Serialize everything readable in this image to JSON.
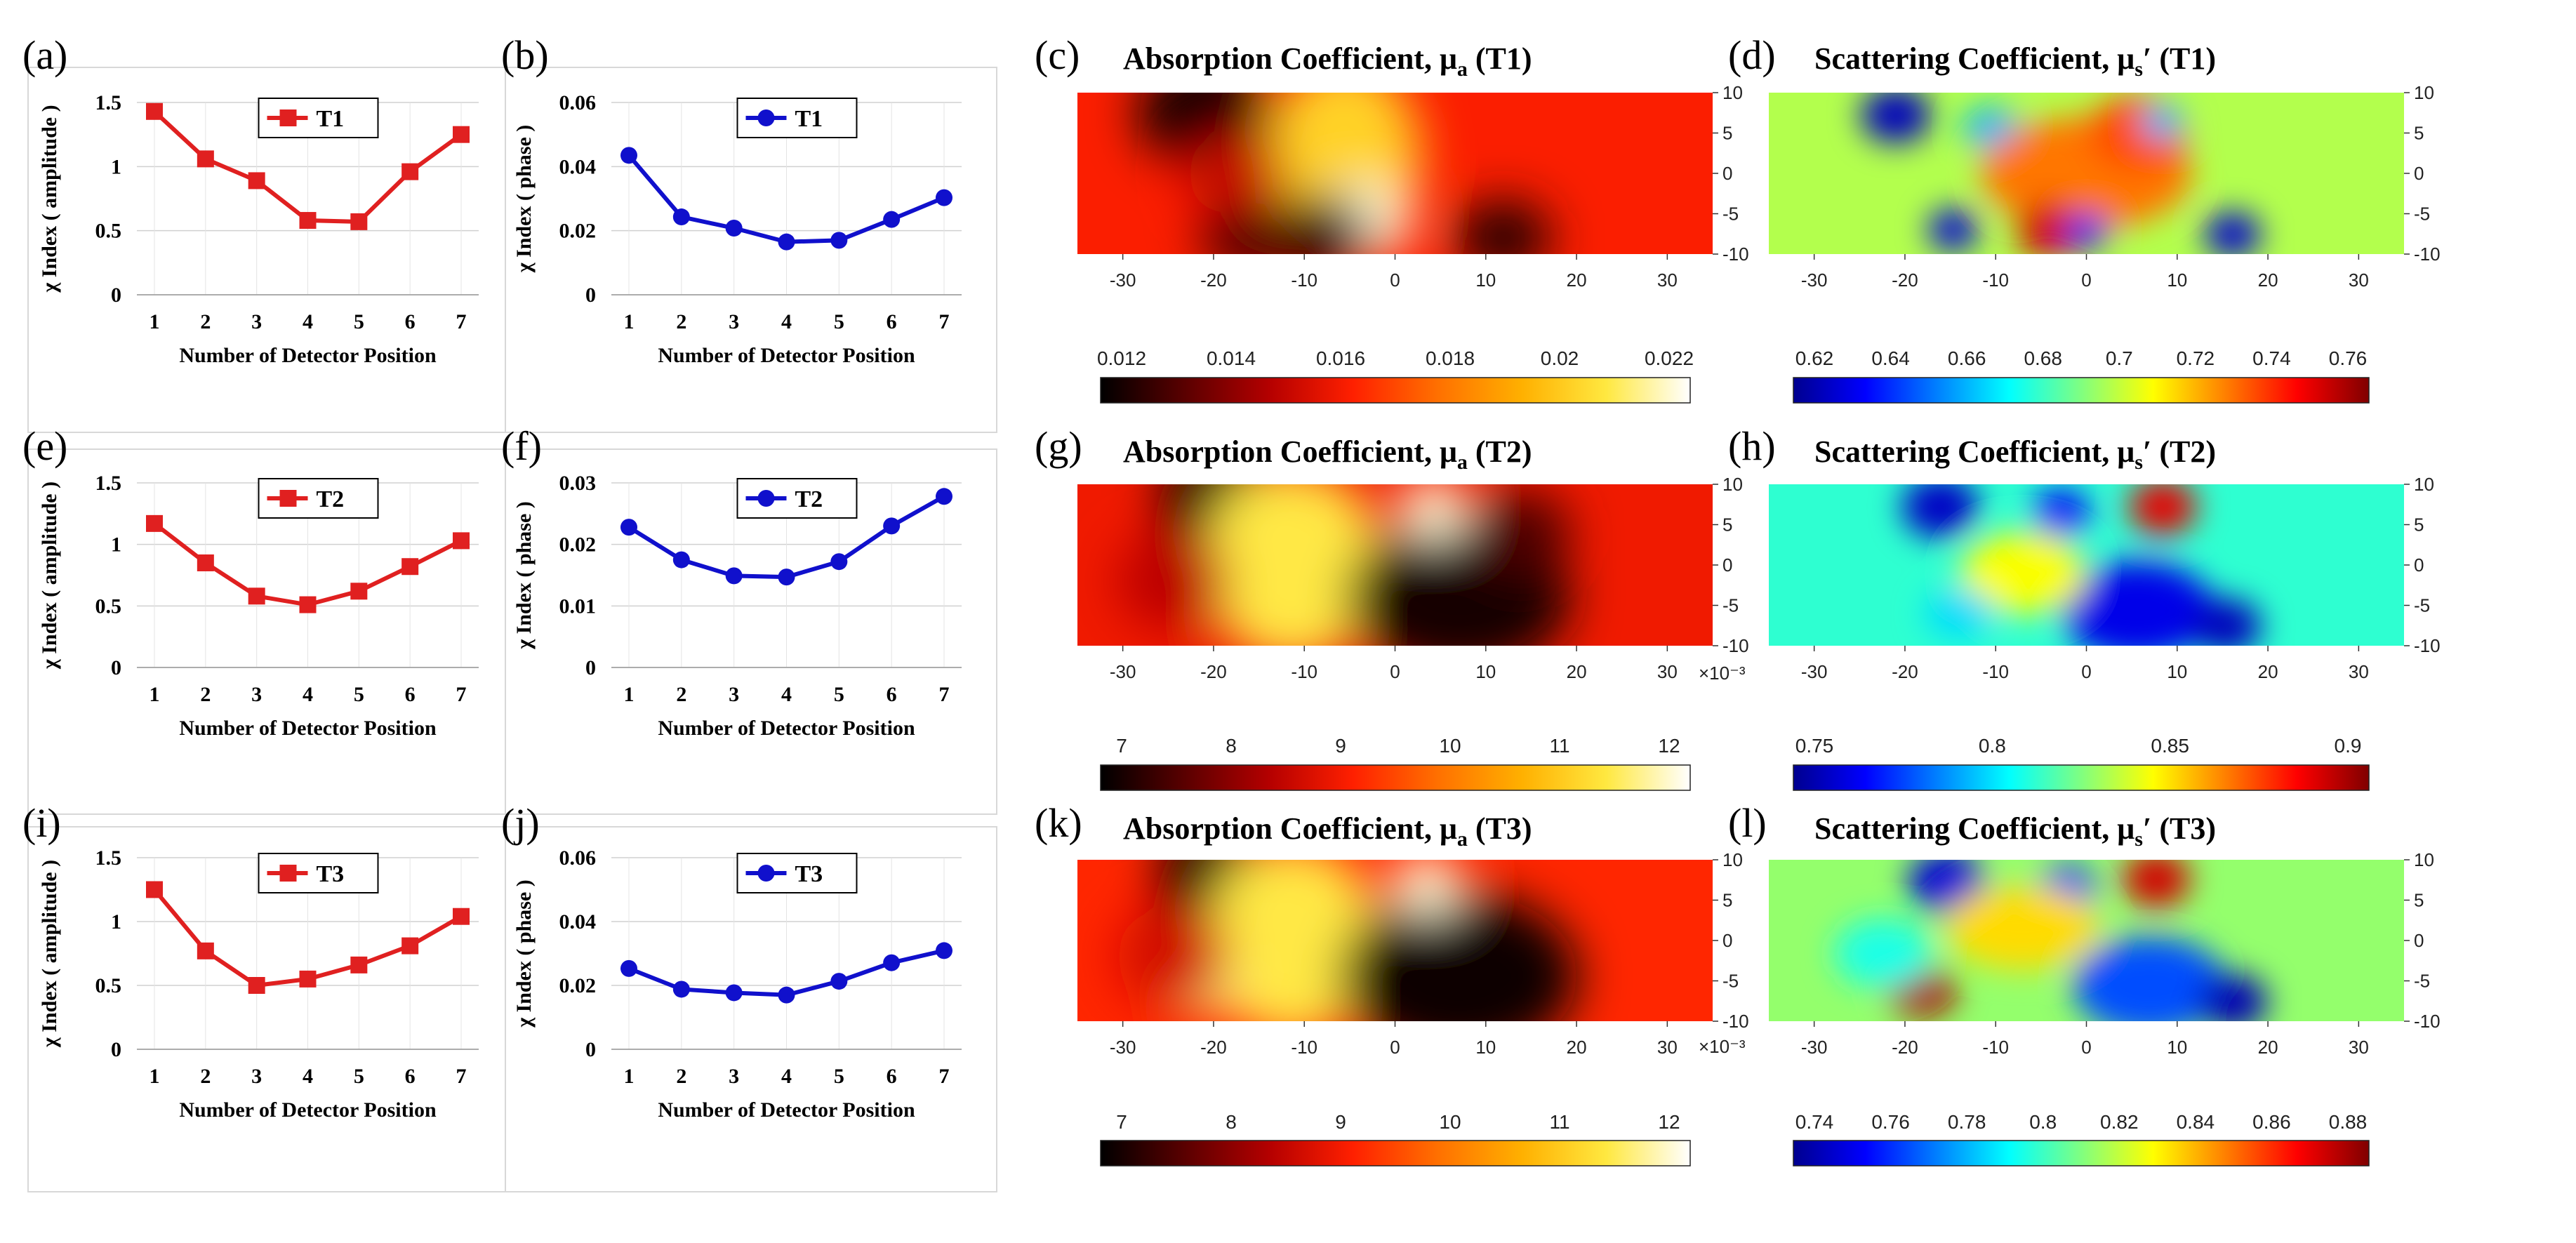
{
  "colors": {
    "red": "#e02020",
    "blue": "#1010cc"
  },
  "chart_data": [
    {
      "type": "line",
      "panel": "(a)",
      "series": [
        {
          "name": "T1",
          "values": [
            1.43,
            1.06,
            0.89,
            0.58,
            0.57,
            0.96,
            1.25
          ]
        }
      ],
      "categories": [
        "1",
        "2",
        "3",
        "4",
        "5",
        "6",
        "7"
      ],
      "ylabel": "χ Index ( amplitude )",
      "xlabel": "Number of Detector Position",
      "ylim": [
        0,
        1.5
      ],
      "yticks": [
        "0",
        "0.5",
        "1",
        "1.5"
      ],
      "color": "red"
    },
    {
      "type": "line",
      "panel": "(b)",
      "series": [
        {
          "name": "T1",
          "values": [
            0.0435,
            0.0243,
            0.0208,
            0.0165,
            0.017,
            0.0235,
            0.0303
          ]
        }
      ],
      "categories": [
        "1",
        "2",
        "3",
        "4",
        "5",
        "6",
        "7"
      ],
      "ylabel": "χ Index ( phase )",
      "xlabel": "Number of Detector Position",
      "ylim": [
        0,
        0.06
      ],
      "yticks": [
        "0",
        "0.02",
        "0.04",
        "0.06"
      ],
      "color": "blue"
    },
    {
      "type": "heatmap",
      "panel": "(c)",
      "title": "Absorption Coefficient, μa (T1)",
      "title_main": "Absorption Coefficient, μ",
      "title_sub": "a",
      "title_tail": " (T1)",
      "xticks": [
        "-30",
        "-20",
        "-10",
        "0",
        "10",
        "20",
        "30"
      ],
      "yticks": [
        "10",
        "5",
        "0",
        "-5",
        "-10"
      ],
      "colorbar_ticks": [
        "0.012",
        "0.014",
        "0.016",
        "0.018",
        "0.02",
        "0.022"
      ],
      "colormap": "hot",
      "exponent": ""
    },
    {
      "type": "heatmap",
      "panel": "(d)",
      "title": "Scattering Coefficient, μs′ (T1)",
      "title_main": "Scattering Coefficient, μ",
      "title_sub": "s",
      "title_tail": "′  (T1)",
      "xticks": [
        "-30",
        "-20",
        "-10",
        "0",
        "10",
        "20",
        "30"
      ],
      "yticks": [
        "10",
        "5",
        "0",
        "-5",
        "-10"
      ],
      "colorbar_ticks": [
        "0.62",
        "0.64",
        "0.66",
        "0.68",
        "0.7",
        "0.72",
        "0.74",
        "0.76"
      ],
      "colormap": "jet",
      "exponent": ""
    },
    {
      "type": "line",
      "panel": "(e)",
      "series": [
        {
          "name": "T2",
          "values": [
            1.17,
            0.85,
            0.58,
            0.51,
            0.62,
            0.82,
            1.03
          ]
        }
      ],
      "categories": [
        "1",
        "2",
        "3",
        "4",
        "5",
        "6",
        "7"
      ],
      "ylabel": "χ Index ( amplitude )",
      "xlabel": "Number of Detector Position",
      "ylim": [
        0,
        1.5
      ],
      "yticks": [
        "0",
        "0.5",
        "1",
        "1.5"
      ],
      "color": "red"
    },
    {
      "type": "line",
      "panel": "(f)",
      "series": [
        {
          "name": "T2",
          "values": [
            0.0228,
            0.0175,
            0.0149,
            0.0147,
            0.0172,
            0.023,
            0.0278
          ]
        }
      ],
      "categories": [
        "1",
        "2",
        "3",
        "4",
        "5",
        "6",
        "7"
      ],
      "ylabel": "χ Index ( phase )",
      "xlabel": "Number of Detector Position",
      "ylim": [
        0,
        0.03
      ],
      "yticks": [
        "0",
        "0.01",
        "0.02",
        "0.03"
      ],
      "color": "blue"
    },
    {
      "type": "heatmap",
      "panel": "(g)",
      "title": "Absorption Coefficient, μa (T2)",
      "title_main": "Absorption Coefficient, μ",
      "title_sub": "a",
      "title_tail": " (T2)",
      "xticks": [
        "-30",
        "-20",
        "-10",
        "0",
        "10",
        "20",
        "30"
      ],
      "yticks": [
        "10",
        "5",
        "0",
        "-5",
        "-10"
      ],
      "colorbar_ticks": [
        "7",
        "8",
        "9",
        "10",
        "11",
        "12"
      ],
      "colormap": "hot",
      "exponent": "×10⁻³"
    },
    {
      "type": "heatmap",
      "panel": "(h)",
      "title": "Scattering Coefficient, μs′ (T2)",
      "title_main": "Scattering Coefficient, μ",
      "title_sub": "s",
      "title_tail": "′  (T2)",
      "xticks": [
        "-30",
        "-20",
        "-10",
        "0",
        "10",
        "20",
        "30"
      ],
      "yticks": [
        "10",
        "5",
        "0",
        "-5",
        "-10"
      ],
      "colorbar_ticks": [
        "0.75",
        "0.8",
        "0.85",
        "0.9"
      ],
      "colormap": "jet",
      "exponent": ""
    },
    {
      "type": "line",
      "panel": "(i)",
      "series": [
        {
          "name": "T3",
          "values": [
            1.25,
            0.77,
            0.5,
            0.55,
            0.66,
            0.81,
            1.04
          ]
        }
      ],
      "categories": [
        "1",
        "2",
        "3",
        "4",
        "5",
        "6",
        "7"
      ],
      "ylabel": "χ Index ( amplitude )",
      "xlabel": "Number of Detector Position",
      "ylim": [
        0,
        1.5
      ],
      "yticks": [
        "0",
        "0.5",
        "1",
        "1.5"
      ],
      "color": "red"
    },
    {
      "type": "line",
      "panel": "(j)",
      "series": [
        {
          "name": "T3",
          "values": [
            0.0253,
            0.0188,
            0.0177,
            0.017,
            0.0213,
            0.0271,
            0.0309
          ]
        }
      ],
      "categories": [
        "1",
        "2",
        "3",
        "4",
        "5",
        "6",
        "7"
      ],
      "ylabel": "χ Index ( phase )",
      "xlabel": "Number of Detector Position",
      "ylim": [
        0,
        0.06
      ],
      "yticks": [
        "0",
        "0.02",
        "0.04",
        "0.06"
      ],
      "color": "blue"
    },
    {
      "type": "heatmap",
      "panel": "(k)",
      "title": "Absorption Coefficient, μa (T3)",
      "title_main": "Absorption Coefficient, μ",
      "title_sub": "a",
      "title_tail": " (T3)",
      "xticks": [
        "-30",
        "-20",
        "-10",
        "0",
        "10",
        "20",
        "30"
      ],
      "yticks": [
        "10",
        "5",
        "0",
        "-5",
        "-10"
      ],
      "colorbar_ticks": [
        "7",
        "8",
        "9",
        "10",
        "11",
        "12"
      ],
      "colormap": "hot",
      "exponent": "×10⁻³"
    },
    {
      "type": "heatmap",
      "panel": "(l)",
      "title": "Scattering Coefficient, μs′ (T3)",
      "title_main": "Scattering Coefficient, μ",
      "title_sub": "s",
      "title_tail": "′  (T3)",
      "xticks": [
        "-30",
        "-20",
        "-10",
        "0",
        "10",
        "20",
        "30"
      ],
      "yticks": [
        "10",
        "5",
        "0",
        "-5",
        "-10"
      ],
      "colorbar_ticks": [
        "0.74",
        "0.76",
        "0.78",
        "0.8",
        "0.82",
        "0.84",
        "0.86",
        "0.88"
      ],
      "colormap": "jet",
      "exponent": ""
    }
  ]
}
